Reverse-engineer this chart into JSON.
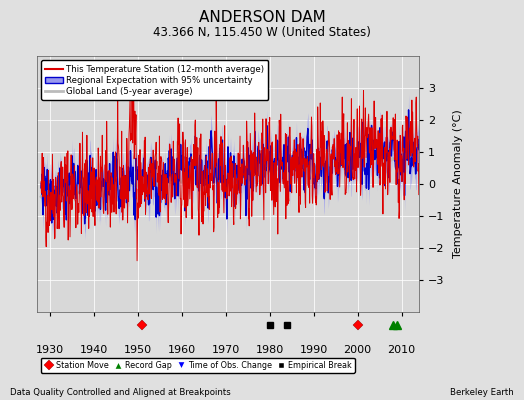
{
  "title": "ANDERSON DAM",
  "subtitle": "43.366 N, 115.450 W (United States)",
  "ylabel": "Temperature Anomaly (°C)",
  "footer_left": "Data Quality Controlled and Aligned at Breakpoints",
  "footer_right": "Berkeley Earth",
  "xlim": [
    1927,
    2014
  ],
  "ylim": [
    -4,
    4
  ],
  "yticks": [
    -3,
    -2,
    -1,
    0,
    1,
    2,
    3
  ],
  "xticks": [
    1930,
    1940,
    1950,
    1960,
    1970,
    1980,
    1990,
    2000,
    2010
  ],
  "bg_color": "#e0e0e0",
  "plot_bg_color": "#d8d8d8",
  "station_line_color": "#dd0000",
  "regional_line_color": "#0000cc",
  "regional_fill_color": "#9999ee",
  "global_land_color": "#bbbbbb",
  "legend_items": [
    {
      "label": "This Temperature Station (12-month average)",
      "color": "#dd0000",
      "lw": 1.5
    },
    {
      "label": "Regional Expectation with 95% uncertainty",
      "color": "#0000cc",
      "fill": "#9999ee"
    },
    {
      "label": "Global Land (5-year average)",
      "color": "#bbbbbb",
      "lw": 2
    }
  ],
  "markers": {
    "station_move": {
      "years": [
        1951,
        2000
      ],
      "color": "red",
      "marker": "D",
      "label": "Station Move"
    },
    "record_gap": {
      "years": [
        2008,
        2009
      ],
      "color": "green",
      "marker": "^",
      "label": "Record Gap"
    },
    "time_obs_change": {
      "years": [],
      "color": "blue",
      "marker": "v",
      "label": "Time of Obs. Change"
    },
    "empirical_break": {
      "years": [
        1980,
        1984
      ],
      "color": "black",
      "marker": "s",
      "label": "Empirical Break"
    }
  },
  "seed": 42
}
